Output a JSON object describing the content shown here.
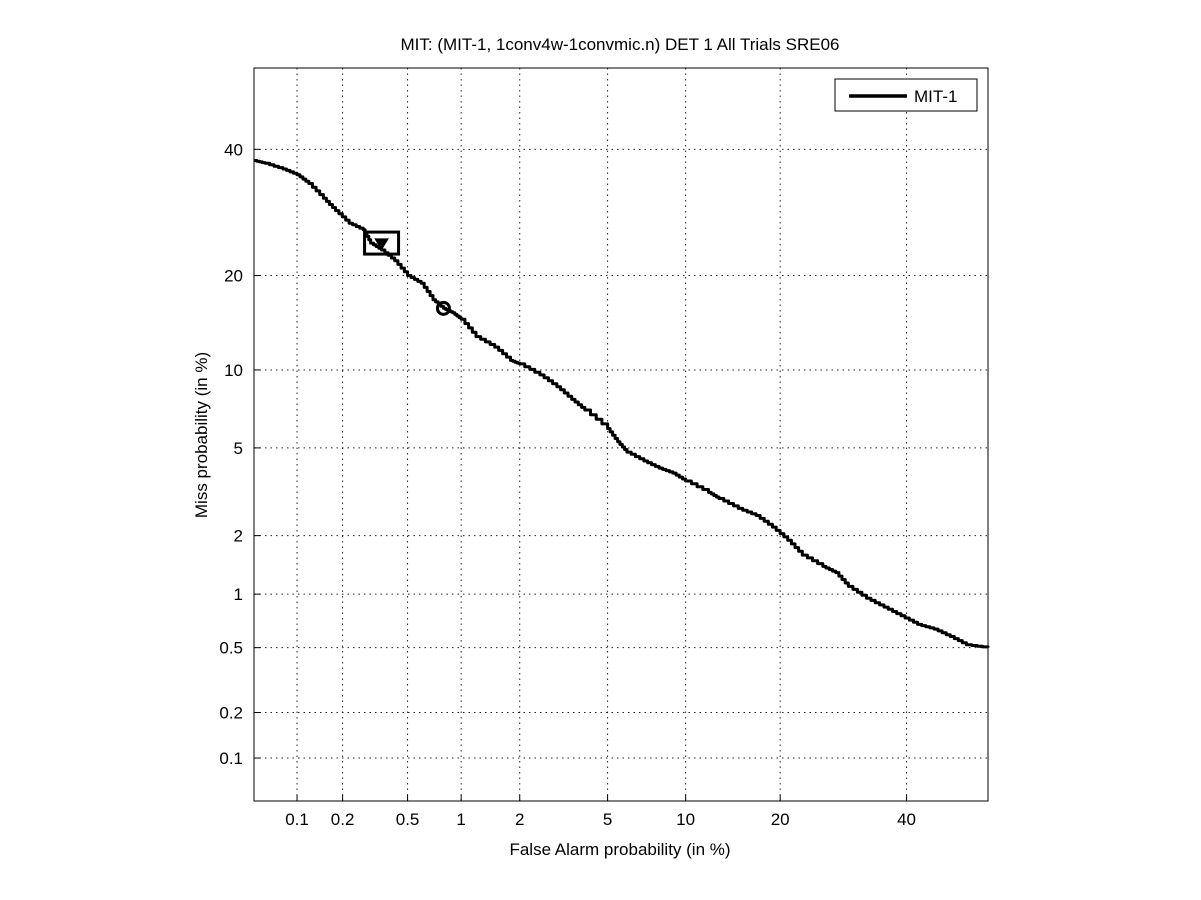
{
  "chart_data": {
    "type": "line",
    "title": "MIT: (MIT-1, 1conv4w-1convmic.n) DET 1 All Trials SRE06",
    "xlabel": "False Alarm probability (in %)",
    "ylabel": "Miss probability (in %)",
    "x_scale": "probit",
    "y_scale": "probit",
    "xlim": [
      0.05,
      55
    ],
    "ylim": [
      0.05,
      55
    ],
    "x_ticks": [
      0.1,
      0.2,
      0.5,
      1,
      2,
      5,
      10,
      20,
      40
    ],
    "x_tick_labels": [
      "0.1",
      "0.2",
      "0.5",
      "1",
      "2",
      "5",
      "10",
      "20",
      "40"
    ],
    "y_ticks": [
      0.1,
      0.2,
      0.5,
      1,
      2,
      5,
      10,
      20,
      40
    ],
    "y_tick_labels": [
      "0.1",
      "0.2",
      "0.5",
      "1",
      "2",
      "5",
      "10",
      "20",
      "40"
    ],
    "grid": true,
    "legend_position": "top-right",
    "series": [
      {
        "name": "MIT-1",
        "color": "#000000",
        "x": [
          0.05,
          0.06,
          0.08,
          0.1,
          0.12,
          0.15,
          0.18,
          0.22,
          0.27,
          0.3,
          0.35,
          0.42,
          0.5,
          0.6,
          0.7,
          0.8,
          0.9,
          1.0,
          1.2,
          1.5,
          1.8,
          2.0,
          2.5,
          3.0,
          3.5,
          4.0,
          5.0,
          5.5,
          6.0,
          7.0,
          8.0,
          9.0,
          10.0,
          12.0,
          13.0,
          15.0,
          17.0,
          19.0,
          21.0,
          23.0,
          26.0,
          28.0,
          30.0,
          33.0,
          36.0,
          39.0,
          42.0,
          45.0,
          48.0,
          51.0,
          55.0
        ],
        "y": [
          38.0,
          37.5,
          36.5,
          35.5,
          34.0,
          31.5,
          29.5,
          27.5,
          26.5,
          24.5,
          23.5,
          22.0,
          20.0,
          19.0,
          17.0,
          16.0,
          15.5,
          14.8,
          13.0,
          12.0,
          10.8,
          10.5,
          9.6,
          8.7,
          7.8,
          7.1,
          6.0,
          5.3,
          4.8,
          4.4,
          4.1,
          3.9,
          3.6,
          3.2,
          3.0,
          2.7,
          2.5,
          2.2,
          1.9,
          1.6,
          1.4,
          1.3,
          1.1,
          0.95,
          0.85,
          0.76,
          0.68,
          0.64,
          0.58,
          0.52,
          0.5
        ]
      }
    ],
    "markers": [
      {
        "name": "min-dcf-point",
        "shape": "square",
        "x": 0.35,
        "y": 24.5
      },
      {
        "name": "actual-dcf-point",
        "shape": "triangle",
        "x": 0.35,
        "y": 24.5
      },
      {
        "name": "eer-or-threshold-point",
        "shape": "circle",
        "x": 0.8,
        "y": 16.0
      }
    ]
  }
}
